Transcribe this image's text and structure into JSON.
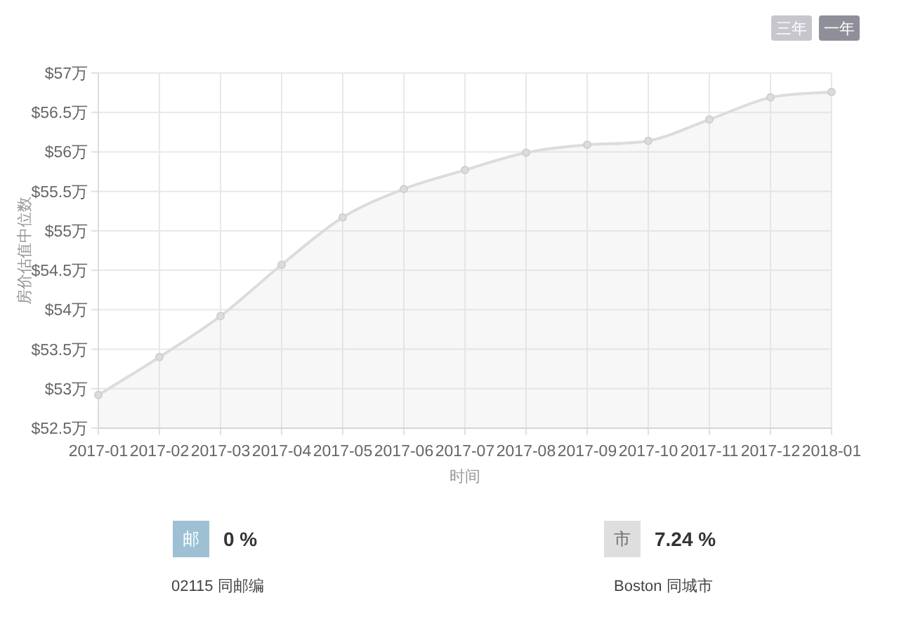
{
  "chart_data": [
    {
      "type": "area",
      "ylabel": "房价估值中位数",
      "xlabel": "时间",
      "annotations": [
        "三年",
        "一年"
      ],
      "categories": [
        "2017-01",
        "2017-02",
        "2017-03",
        "2017-04",
        "2017-05",
        "2017-06",
        "2017-07",
        "2017-08",
        "2017-09",
        "2017-10",
        "2017-11",
        "2017-12",
        "2018-01"
      ],
      "series": [
        {
          "color": "#dcdcdc",
          "values": [
            52.92,
            53.4,
            53.92,
            54.57,
            55.17,
            55.53,
            55.77,
            55.99,
            56.09,
            56.14,
            56.41,
            56.69,
            56.76
          ]
        }
      ],
      "ylim": [
        52.5,
        57
      ],
      "yticks": [
        {
          "value": 52.5,
          "label": "$52.5万"
        },
        {
          "value": 53,
          "label": "$53万"
        },
        {
          "value": 53.5,
          "label": "$53.5万"
        },
        {
          "value": 54,
          "label": "$54万"
        },
        {
          "value": 54.5,
          "label": "$54.5万"
        },
        {
          "value": 55,
          "label": "$55万"
        },
        {
          "value": 55.5,
          "label": "$55.5万"
        },
        {
          "value": 56,
          "label": "$56万"
        },
        {
          "value": 56.5,
          "label": "$56.5万"
        },
        {
          "value": 57,
          "label": "$57万"
        }
      ],
      "grid": true,
      "marker": "circle",
      "line_style": "solid"
    },
    {
      "type": "other",
      "annotations": [
        "邮",
        "0 %",
        "02115 同邮编",
        "市",
        "7.24 %",
        "Boston 同城市"
      ],
      "colors": [
        "#9dc0d4",
        "#dedede"
      ]
    }
  ]
}
